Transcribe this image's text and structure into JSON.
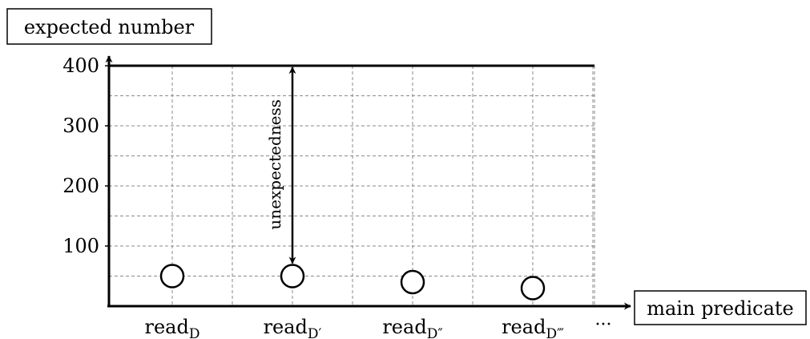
{
  "chart_data": {
    "type": "scatter",
    "ylabel": "expected number",
    "xlabel": "main predicate",
    "ylim": [
      0,
      400
    ],
    "yticks": [
      100,
      200,
      300,
      400
    ],
    "grid": true,
    "grid_style": "dashed",
    "categories": [
      {
        "base": "read",
        "sub": "D"
      },
      {
        "base": "read",
        "sub": "D′"
      },
      {
        "base": "read",
        "sub": "D″"
      },
      {
        "base": "read",
        "sub": "D‴"
      }
    ],
    "continuation": "···",
    "values": [
      50,
      50,
      40,
      30
    ],
    "marker": "open-circle",
    "reference_line": {
      "value": 400
    },
    "annotation": {
      "text": "unexpectedness",
      "category_index": 1,
      "from": 400,
      "to": 50
    }
  }
}
